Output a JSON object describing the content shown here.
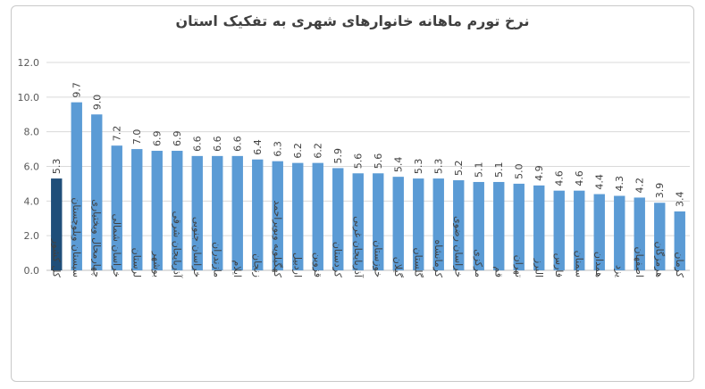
{
  "chart_data": {
    "type": "bar",
    "title": "نرخ تورم ماهانه خانوارهای شهری به تفکیک استان",
    "xlabel": "",
    "ylabel": "",
    "ylim": [
      0,
      12
    ],
    "yticks": [
      "0.0",
      "2.0",
      "4.0",
      "6.0",
      "8.0",
      "10.0",
      "12.0"
    ],
    "grid": true,
    "categories": [
      "کل کشور",
      "سیستان وبلوچستان",
      "چهارمحال وبختیاری",
      "خراسان شمالی",
      "لرستان",
      "بوشهر",
      "آذربایجان شرقی",
      "خراسان جنوبی",
      "مازندران",
      "ایلام",
      "زنجان",
      "کهگیلویه وبویراحمد",
      "اردبیل",
      "قزوین",
      "کردستان",
      "آذربایجان غربی",
      "خوزستان",
      "گیلان",
      "گلستان",
      "کرمانشاه",
      "خراسان رضوی",
      "مرکزی",
      "قم",
      "تهران",
      "البرز",
      "فارس",
      "سمنان",
      "همدان",
      "یزد",
      "اصفهان",
      "هرمزگان",
      "کرمان"
    ],
    "values": [
      5.3,
      9.7,
      9.0,
      7.2,
      7.0,
      6.9,
      6.9,
      6.6,
      6.6,
      6.6,
      6.4,
      6.3,
      6.2,
      6.2,
      5.9,
      5.6,
      5.6,
      5.4,
      5.3,
      5.3,
      5.2,
      5.1,
      5.1,
      5.0,
      4.9,
      4.6,
      4.6,
      4.4,
      4.3,
      4.2,
      3.9,
      3.4
    ],
    "value_labels": [
      "5.3",
      "9.7",
      "9.0",
      "7.2",
      "7.0",
      "6.9",
      "6.9",
      "6.6",
      "6.6",
      "6.6",
      "6.4",
      "6.3",
      "6.2",
      "6.2",
      "5.9",
      "5.6",
      "5.6",
      "5.4",
      "5.3",
      "5.3",
      "5.2",
      "5.1",
      "5.1",
      "5.0",
      "4.9",
      "4.6",
      "4.6",
      "4.4",
      "4.3",
      "4.2",
      "3.9",
      "3.4"
    ],
    "colors": {
      "highlight": "#1f4e79",
      "bar": "#5b9bd5",
      "grid": "#d9d9d9",
      "axis": "#bfbfbf"
    }
  }
}
